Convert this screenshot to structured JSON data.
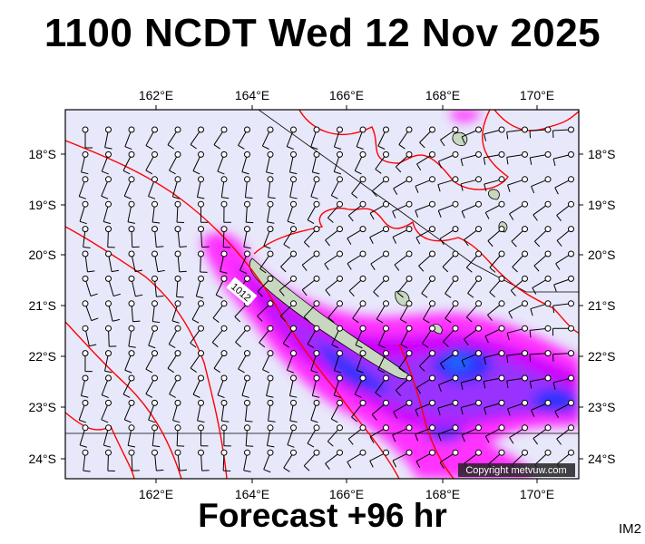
{
  "header": {
    "title": "1100 NCDT Wed 12 Nov 2025"
  },
  "footer": {
    "forecast": "Forecast +96 hr",
    "tag": "IM2"
  },
  "map": {
    "lon_labels": [
      "162°E",
      "164°E",
      "166°E",
      "168°E",
      "170°E"
    ],
    "lat_labels": [
      "18°S",
      "19°S",
      "20°S",
      "21°S",
      "22°S",
      "23°S",
      "24°S"
    ],
    "isobar_label": "1012",
    "copyright": "Copyright metvuw.com",
    "colors": {
      "background": "#e8e8fb",
      "isobar": "#ff0000",
      "rain_light": "#ff33ff",
      "rain_mid": "#9900ff",
      "rain_heavy": "#3333ff",
      "land": "#c8d8c0"
    }
  }
}
